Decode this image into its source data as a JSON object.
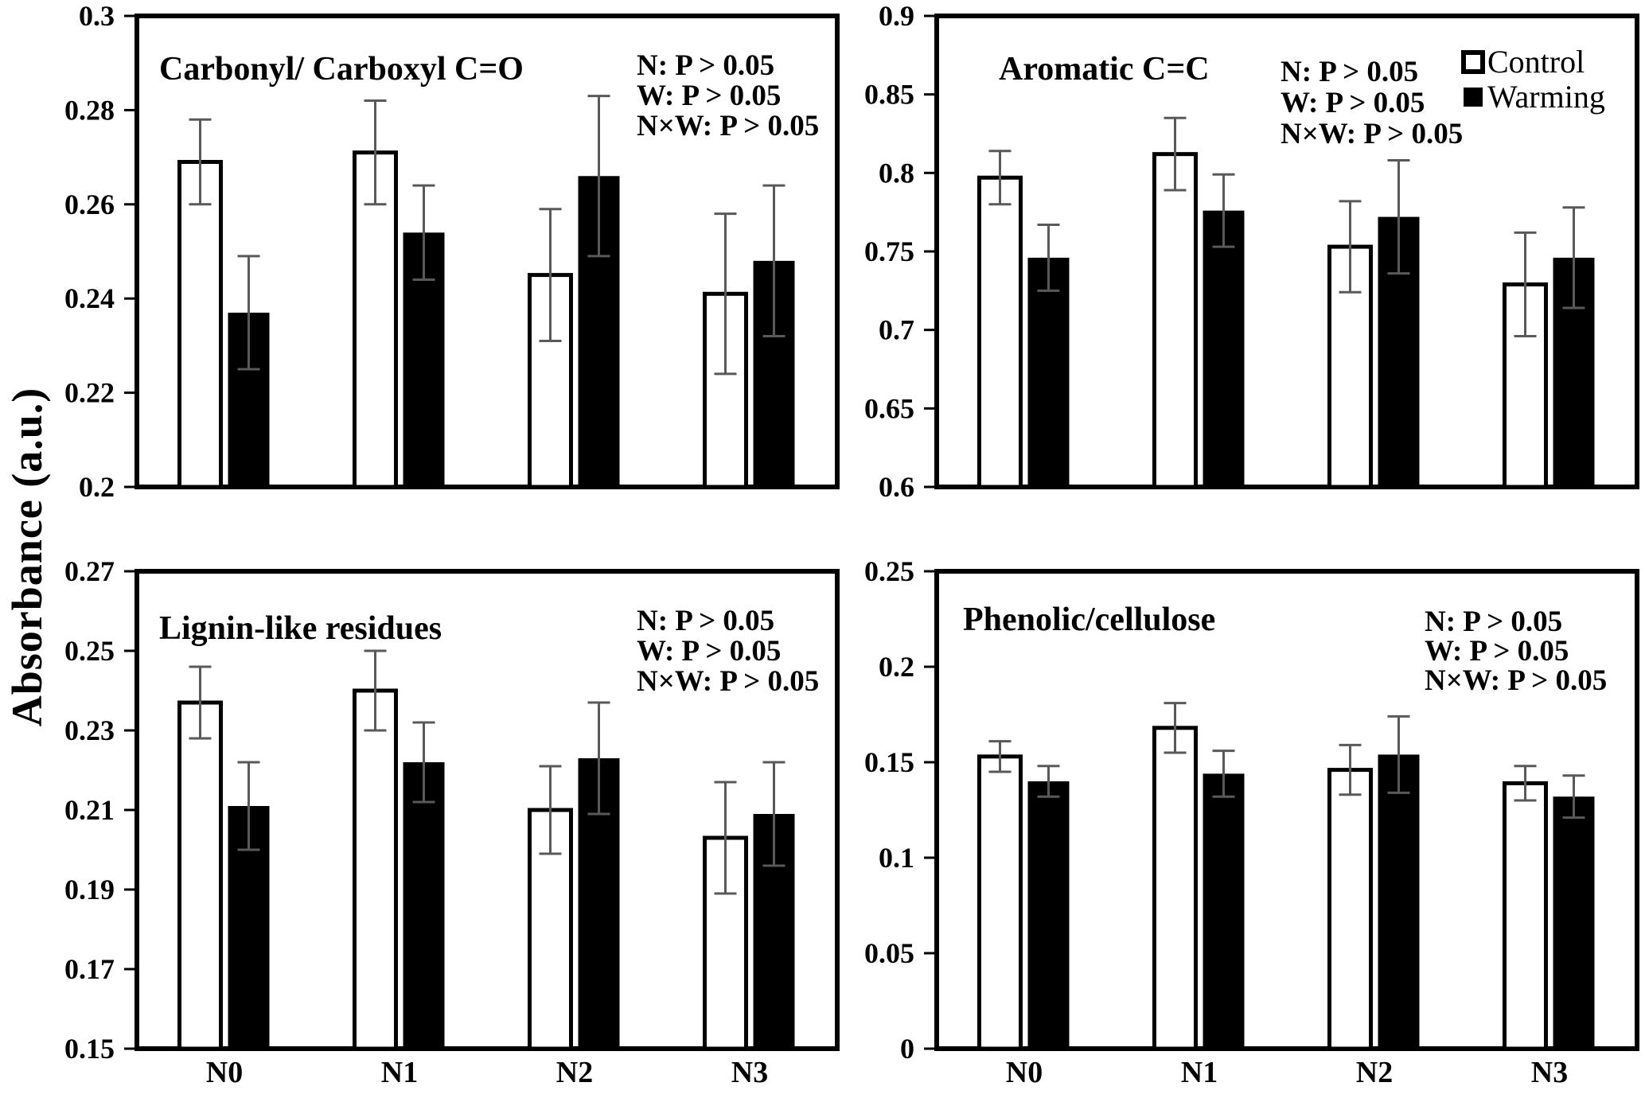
{
  "figure": {
    "y_axis_label": "Absorbance (a.u.)",
    "categories": [
      "N0",
      "N1",
      "N2",
      "N3"
    ],
    "legend": {
      "items": [
        {
          "label": "Control",
          "fill": "#ffffff"
        },
        {
          "label": "Warming",
          "fill": "#000000"
        }
      ]
    },
    "colors": {
      "bar_control_fill": "#ffffff",
      "bar_warming_fill": "#000000",
      "bar_border": "#000000",
      "error_bar": "#595959",
      "axis": "#000000",
      "text": "#000000",
      "background": "#ffffff"
    }
  },
  "chart_data": [
    {
      "type": "bar",
      "title": "Carbonyl/ Carboxyl C=O",
      "categories": [
        "N0",
        "N1",
        "N2",
        "N3"
      ],
      "series": [
        {
          "name": "Control",
          "values": [
            0.269,
            0.271,
            0.245,
            0.241
          ],
          "errors": [
            0.009,
            0.011,
            0.014,
            0.017
          ]
        },
        {
          "name": "Warming",
          "values": [
            0.237,
            0.254,
            0.266,
            0.248
          ],
          "errors": [
            0.012,
            0.01,
            0.017,
            0.016
          ]
        }
      ],
      "ylim": [
        0.2,
        0.3
      ],
      "yticks": [
        "0.2",
        "0.22",
        "0.24",
        "0.26",
        "0.28",
        "0.3"
      ],
      "annotation": [
        "N: P > 0.05",
        "W: P > 0.05",
        "N×W: P > 0.05"
      ],
      "legend_visible": false,
      "x_tick_labels_visible": false,
      "grid": false
    },
    {
      "type": "bar",
      "title": "Aromatic C=C",
      "categories": [
        "N0",
        "N1",
        "N2",
        "N3"
      ],
      "series": [
        {
          "name": "Control",
          "values": [
            0.797,
            0.812,
            0.753,
            0.729
          ],
          "errors": [
            0.017,
            0.023,
            0.029,
            0.033
          ]
        },
        {
          "name": "Warming",
          "values": [
            0.746,
            0.776,
            0.772,
            0.746
          ],
          "errors": [
            0.021,
            0.023,
            0.036,
            0.032
          ]
        }
      ],
      "ylim": [
        0.6,
        0.9
      ],
      "yticks": [
        "0.6",
        "0.65",
        "0.7",
        "0.75",
        "0.8",
        "0.85",
        "0.9"
      ],
      "annotation": [
        "N: P > 0.05",
        "W: P > 0.05",
        "N×W: P > 0.05"
      ],
      "legend_visible": true,
      "x_tick_labels_visible": false,
      "grid": false
    },
    {
      "type": "bar",
      "title": "Lignin-like residues",
      "categories": [
        "N0",
        "N1",
        "N2",
        "N3"
      ],
      "series": [
        {
          "name": "Control",
          "values": [
            0.237,
            0.24,
            0.21,
            0.203
          ],
          "errors": [
            0.009,
            0.01,
            0.011,
            0.014
          ]
        },
        {
          "name": "Warming",
          "values": [
            0.211,
            0.222,
            0.223,
            0.209
          ],
          "errors": [
            0.011,
            0.01,
            0.014,
            0.013
          ]
        }
      ],
      "ylim": [
        0.15,
        0.27
      ],
      "yticks": [
        "0.15",
        "0.17",
        "0.19",
        "0.21",
        "0.23",
        "0.25",
        "0.27"
      ],
      "annotation": [
        "N: P > 0.05",
        "W: P > 0.05",
        "N×W: P > 0.05"
      ],
      "legend_visible": false,
      "x_tick_labels_visible": true,
      "grid": false
    },
    {
      "type": "bar",
      "title": "Phenolic/cellulose",
      "categories": [
        "N0",
        "N1",
        "N2",
        "N3"
      ],
      "series": [
        {
          "name": "Control",
          "values": [
            0.153,
            0.168,
            0.146,
            0.139
          ],
          "errors": [
            0.008,
            0.013,
            0.013,
            0.009
          ]
        },
        {
          "name": "Warming",
          "values": [
            0.14,
            0.144,
            0.154,
            0.132
          ],
          "errors": [
            0.008,
            0.012,
            0.02,
            0.011
          ]
        }
      ],
      "ylim": [
        0,
        0.25
      ],
      "yticks": [
        "0",
        "0.05",
        "0.1",
        "0.15",
        "0.2",
        "0.25"
      ],
      "annotation": [
        "N: P > 0.05",
        "W: P > 0.05",
        "N×W: P > 0.05"
      ],
      "legend_visible": false,
      "x_tick_labels_visible": true,
      "grid": false
    }
  ]
}
